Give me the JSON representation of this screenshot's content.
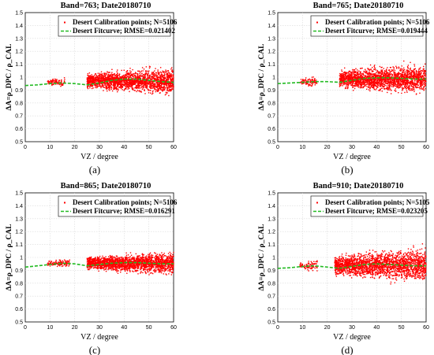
{
  "colors": {
    "points": "#ff0000",
    "fitcurve": "#22bb22",
    "axis": "#000000"
  },
  "chart_data": [
    {
      "type": "scatter",
      "panel_label": "(a)",
      "title": "Band=763; Date20180710",
      "xlabel": "VZ / degree",
      "ylabel": "ΔA=ρ_DPC / ρ_CAL",
      "xlim": [
        0,
        60
      ],
      "ylim": [
        0.5,
        1.5
      ],
      "xticks": [
        0,
        10,
        20,
        30,
        40,
        50,
        60
      ],
      "yticks": [
        0.5,
        0.6,
        0.7,
        0.8,
        0.9,
        1,
        1.1,
        1.2,
        1.3,
        1.4,
        1.5
      ],
      "grid": true,
      "legend_position": "top-right",
      "series": [
        {
          "name": "Desert Calibration points; N=5106",
          "kind": "points",
          "clusters": [
            {
              "x_range": [
                9,
                16
              ],
              "center": 0.96,
              "spread": 0.012
            },
            {
              "x_range": [
                25,
                60
              ],
              "center": 0.97,
              "spread": 0.035
            }
          ]
        },
        {
          "name": "Desert Fitcurve; RMSE=0.021402",
          "kind": "fit",
          "x": [
            0,
            5,
            10,
            15,
            20,
            25,
            30,
            35,
            40,
            45,
            50,
            55,
            60
          ],
          "y": [
            0.935,
            0.94,
            0.95,
            0.955,
            0.95,
            0.94,
            0.955,
            0.975,
            0.985,
            0.985,
            0.975,
            0.965,
            0.96
          ]
        }
      ]
    },
    {
      "type": "scatter",
      "panel_label": "(b)",
      "title": "Band=765; Date20180710",
      "xlabel": "VZ / degree",
      "ylabel": "ΔA=ρ_DPC / ρ_CAL",
      "xlim": [
        0,
        60
      ],
      "ylim": [
        0.5,
        1.5
      ],
      "xticks": [
        0,
        10,
        20,
        30,
        40,
        50,
        60
      ],
      "yticks": [
        0.5,
        0.6,
        0.7,
        0.8,
        0.9,
        1,
        1.1,
        1.2,
        1.3,
        1.4,
        1.5
      ],
      "grid": true,
      "legend_position": "top-right",
      "series": [
        {
          "name": "Desert Calibration points; N=5106",
          "kind": "points",
          "clusters": [
            {
              "x_range": [
                9,
                16
              ],
              "center": 0.965,
              "spread": 0.015
            },
            {
              "x_range": [
                25,
                60
              ],
              "center": 0.985,
              "spread": 0.04
            }
          ]
        },
        {
          "name": "Desert Fitcurve; RMSE=0.019444",
          "kind": "fit",
          "x": [
            0,
            5,
            10,
            15,
            20,
            25,
            30,
            35,
            40,
            45,
            50,
            55,
            60
          ],
          "y": [
            0.95,
            0.955,
            0.96,
            0.965,
            0.965,
            0.96,
            0.975,
            0.99,
            0.995,
            0.995,
            0.99,
            0.985,
            0.985
          ]
        }
      ]
    },
    {
      "type": "scatter",
      "panel_label": "(c)",
      "title": "Band=865; Date20180710",
      "xlabel": "VZ / degree",
      "ylabel": "ΔA=ρ_DPC / ρ_CAL",
      "xlim": [
        0,
        60
      ],
      "ylim": [
        0.5,
        1.5
      ],
      "xticks": [
        0,
        10,
        20,
        30,
        40,
        50,
        60
      ],
      "yticks": [
        0.5,
        0.6,
        0.7,
        0.8,
        0.9,
        1,
        1.1,
        1.2,
        1.3,
        1.4,
        1.5
      ],
      "grid": true,
      "legend_position": "top-right",
      "series": [
        {
          "name": "Desert Calibration points; N=5106",
          "kind": "points",
          "clusters": [
            {
              "x_range": [
                9,
                18
              ],
              "center": 0.955,
              "spread": 0.012
            },
            {
              "x_range": [
                25,
                60
              ],
              "center": 0.955,
              "spread": 0.03
            }
          ]
        },
        {
          "name": "Desert Fitcurve; RMSE=0.016291",
          "kind": "fit",
          "x": [
            0,
            5,
            10,
            15,
            20,
            25,
            30,
            35,
            40,
            45,
            50,
            55,
            60
          ],
          "y": [
            0.925,
            0.935,
            0.945,
            0.955,
            0.95,
            0.935,
            0.945,
            0.955,
            0.96,
            0.96,
            0.955,
            0.95,
            0.95
          ]
        }
      ]
    },
    {
      "type": "scatter",
      "panel_label": "(d)",
      "title": "Band=910; Date20180710",
      "xlabel": "VZ / degree",
      "ylabel": "ΔA=ρ_DPC / ρ_CAL",
      "xlim": [
        0,
        60
      ],
      "ylim": [
        0.5,
        1.5
      ],
      "xticks": [
        0,
        10,
        20,
        30,
        40,
        50,
        60
      ],
      "yticks": [
        0.5,
        0.6,
        0.7,
        0.8,
        0.9,
        1,
        1.1,
        1.2,
        1.3,
        1.4,
        1.5
      ],
      "grid": true,
      "legend_position": "top-right",
      "series": [
        {
          "name": "Desert Calibration points; N=5105",
          "kind": "points",
          "clusters": [
            {
              "x_range": [
                9,
                16
              ],
              "center": 0.935,
              "spread": 0.015
            },
            {
              "x_range": [
                23,
                60
              ],
              "center": 0.94,
              "spread": 0.045
            }
          ]
        },
        {
          "name": "Desert Fitcurve; RMSE=0.023205",
          "kind": "fit",
          "x": [
            0,
            5,
            10,
            15,
            20,
            25,
            30,
            35,
            40,
            45,
            50,
            55,
            60
          ],
          "y": [
            0.915,
            0.92,
            0.93,
            0.935,
            0.925,
            0.915,
            0.93,
            0.945,
            0.95,
            0.945,
            0.94,
            0.935,
            0.935
          ]
        }
      ]
    }
  ]
}
